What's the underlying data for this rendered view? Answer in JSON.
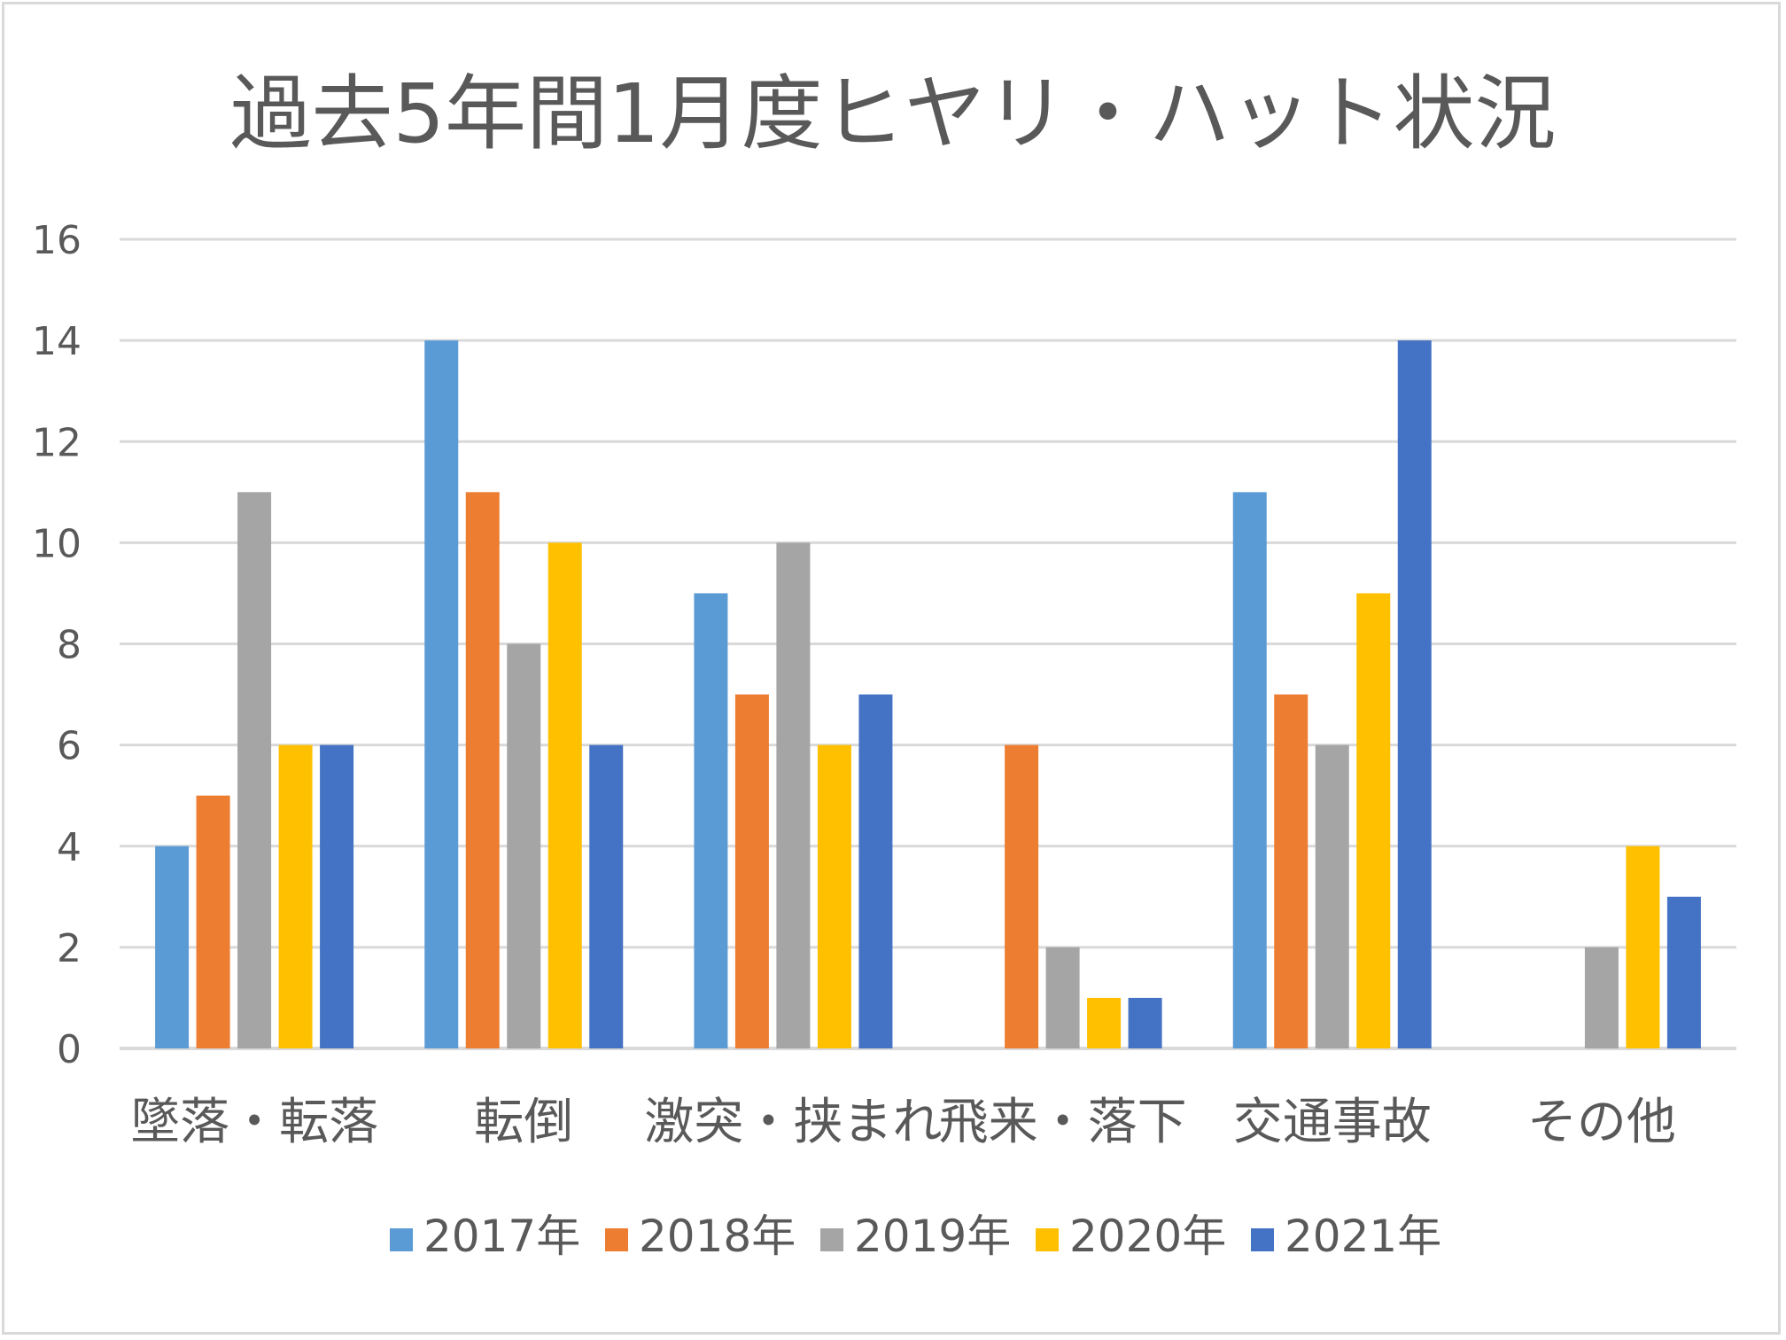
{
  "chart_data": {
    "type": "bar",
    "title": "過去5年間1月度ヒヤリ・ハット状況",
    "categories": [
      "墜落・転落",
      "転倒",
      "激突・挟まれ",
      "飛来・落下",
      "交通事故",
      "その他"
    ],
    "series": [
      {
        "name": "2017年",
        "color": "#5b9bd5",
        "values": [
          4,
          14,
          9,
          0,
          11,
          0
        ]
      },
      {
        "name": "2018年",
        "color": "#ed7d31",
        "values": [
          5,
          11,
          7,
          6,
          7,
          0
        ]
      },
      {
        "name": "2019年",
        "color": "#a5a5a5",
        "values": [
          11,
          8,
          10,
          2,
          6,
          2
        ]
      },
      {
        "name": "2020年",
        "color": "#ffc000",
        "values": [
          6,
          10,
          6,
          1,
          9,
          4
        ]
      },
      {
        "name": "2021年",
        "color": "#4472c4",
        "values": [
          6,
          6,
          7,
          1,
          14,
          3
        ]
      }
    ],
    "ylim": [
      0,
      16
    ],
    "yticks": [
      0,
      2,
      4,
      6,
      8,
      10,
      12,
      14,
      16
    ],
    "grid": true,
    "legend_position": "bottom"
  }
}
